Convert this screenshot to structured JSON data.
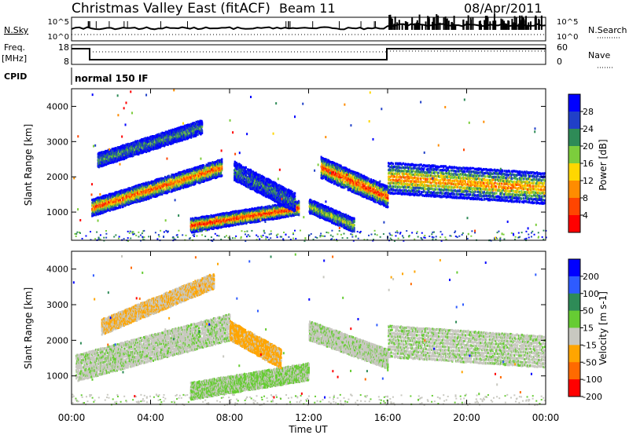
{
  "header": {
    "station": "Christmas Valley East (fitACF)",
    "beam": "Beam 11",
    "date": "08/Apr/2011"
  },
  "summary_labels": {
    "nsky": "N.Sky",
    "nsearch": "N.Search",
    "freq": "Freq.",
    "freq_unit": "[MHz]",
    "nave": "Nave",
    "cpid": "CPID",
    "cpid_value": "normal 150 IF",
    "count_ticks": [
      "10^5",
      "10^0"
    ],
    "freq_ticks": [
      "18",
      "8"
    ],
    "nave_ticks": [
      "60",
      "0"
    ]
  },
  "xaxis": {
    "label": "Time UT",
    "ticks": [
      "00:00",
      "04:00",
      "08:00",
      "12:00",
      "16:00",
      "20:00",
      "00:00"
    ]
  },
  "chart_data": [
    {
      "type": "heatmap",
      "panel": "power",
      "xlabel": "Time UT",
      "ylabel": "Slant Range [km]",
      "xlim": [
        0,
        24
      ],
      "ylim": [
        200,
        4500
      ],
      "yticks": [
        "1000",
        "2000",
        "3000",
        "4000"
      ],
      "colorbar": {
        "label": "Power [dB]",
        "ticks": [
          "4",
          "8",
          "12",
          "16",
          "20",
          "24",
          "28"
        ],
        "range": [
          0,
          30
        ],
        "colors": [
          "#0000ff",
          "#2040c8",
          "#2e8b57",
          "#7ccd3c",
          "#ffd700",
          "#ff8c00",
          "#ff4500",
          "#ff0000"
        ]
      },
      "bands": [
        {
          "t0": 1.0,
          "t1": 7.6,
          "r0": 1150,
          "r1": 2300,
          "width": 220,
          "level": 0.85
        },
        {
          "t0": 1.3,
          "t1": 6.6,
          "r0": 2500,
          "r1": 3450,
          "width": 180,
          "level": 0.35
        },
        {
          "t0": 6.0,
          "t1": 11.5,
          "r0": 650,
          "r1": 1150,
          "width": 180,
          "level": 0.95
        },
        {
          "t0": 8.2,
          "t1": 11.3,
          "r0": 2200,
          "r1": 1300,
          "width": 250,
          "level": 0.3
        },
        {
          "t0": 12.6,
          "t1": 16.0,
          "r0": 2300,
          "r1": 1450,
          "width": 280,
          "level": 0.9
        },
        {
          "t0": 12.0,
          "t1": 14.3,
          "r0": 1200,
          "r1": 650,
          "width": 180,
          "level": 0.5
        },
        {
          "t0": 16.0,
          "t1": 24.0,
          "r0": 2000,
          "r1": 1700,
          "width": 420,
          "level": 0.75
        }
      ]
    },
    {
      "type": "heatmap",
      "panel": "velocity",
      "xlabel": "Time UT",
      "ylabel": "Slant Range [km]",
      "xlim": [
        0,
        24
      ],
      "ylim": [
        200,
        4500
      ],
      "yticks": [
        "1000",
        "2000",
        "3000",
        "4000"
      ],
      "colorbar": {
        "label": "Velocity [m s-1]",
        "ticks": [
          "200",
          "100",
          "50",
          "15",
          "-15",
          "-50",
          "-100",
          "-200"
        ],
        "range": [
          -250,
          250
        ],
        "colors": [
          "#0000ff",
          "#2e5bff",
          "#2e8b57",
          "#66cc33",
          "#c8c8c0",
          "#ffa500",
          "#ff6a00",
          "#ff0000"
        ]
      },
      "bands": [
        {
          "t0": 0.2,
          "t1": 8.0,
          "r0": 1250,
          "r1": 2400,
          "width": 350,
          "velocity": 0
        },
        {
          "t0": 1.5,
          "t1": 7.2,
          "r0": 2400,
          "r1": 3700,
          "width": 200,
          "velocity": -60
        },
        {
          "t0": 6.0,
          "t1": 12.0,
          "r0": 600,
          "r1": 1150,
          "width": 220,
          "velocity": 20
        },
        {
          "t0": 8.0,
          "t1": 10.6,
          "r0": 2300,
          "r1": 1500,
          "width": 250,
          "velocity": -80
        },
        {
          "t0": 12.0,
          "t1": 16.0,
          "r0": 2300,
          "r1": 1500,
          "width": 250,
          "velocity": 0
        },
        {
          "t0": 16.0,
          "t1": 24.0,
          "r0": 2000,
          "r1": 1700,
          "width": 420,
          "velocity": 0
        }
      ]
    }
  ]
}
